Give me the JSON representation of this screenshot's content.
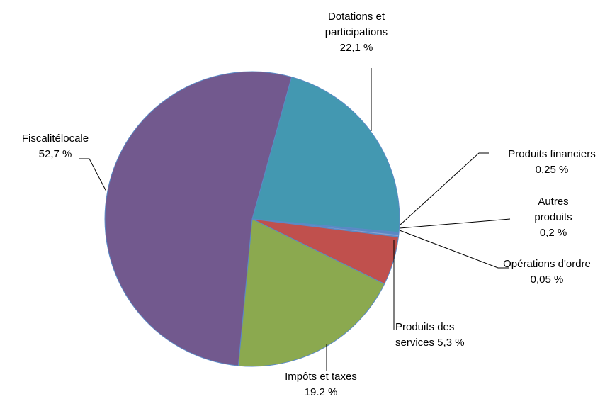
{
  "chart_data": {
    "type": "pie",
    "slices": [
      {
        "name": "Dotations et participations",
        "label_lines": [
          "Dotations et",
          "participations",
          "22,1 %"
        ],
        "value": 22.1,
        "color": "#4398b1"
      },
      {
        "name": "Produits financiers",
        "label_lines": [
          "Produits financiers",
          "0,25 %"
        ],
        "value": 0.25,
        "color": "#5b87c4"
      },
      {
        "name": "Autres produits",
        "label_lines": [
          "Autres",
          "produits",
          "0,2 %"
        ],
        "value": 0.2,
        "color": "#8aa0cf"
      },
      {
        "name": "Opérations d'ordre",
        "label_lines": [
          "Opérations d'ordre",
          "0,05 %"
        ],
        "value": 0.05,
        "color": "#c0504d"
      },
      {
        "name": "Produits des services",
        "label_lines": [
          "Produits des",
          "services 5,3 %"
        ],
        "value": 5.3,
        "color": "#c0504d"
      },
      {
        "name": "Impôts et taxes",
        "label_lines": [
          "Impôts et taxes",
          "19.2 %"
        ],
        "value": 19.2,
        "color": "#8ba94f"
      },
      {
        "name": "Fiscalité locale",
        "label_lines": [
          "Fiscalitélocale",
          "52,7  %"
        ],
        "value": 52.7,
        "color": "#72598e"
      }
    ]
  }
}
